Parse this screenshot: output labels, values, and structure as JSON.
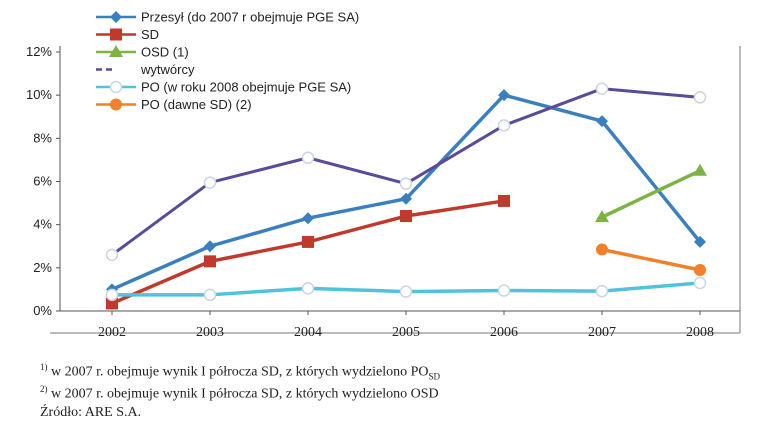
{
  "chart_data": {
    "type": "line",
    "title": "",
    "xlabel": "",
    "ylabel": "",
    "categories": [
      "2002",
      "2003",
      "2004",
      "2005",
      "2006",
      "2007",
      "2008"
    ],
    "ylim": [
      0,
      12
    ],
    "yticks": [
      "0%",
      "2%",
      "4%",
      "6%",
      "8%",
      "10%",
      "12%"
    ],
    "legend_position": "top-left",
    "series": [
      {
        "name": "Przesył (do 2007 r obejmuje PGE SA)",
        "color": "#3a7fc0",
        "marker": "diamond",
        "dashed": false,
        "values": [
          1.0,
          3.0,
          4.3,
          5.2,
          10.0,
          8.8,
          3.2
        ]
      },
      {
        "name": "SD",
        "color": "#c0392b",
        "marker": "square",
        "dashed": false,
        "values": [
          0.35,
          2.3,
          3.2,
          4.4,
          5.1,
          null,
          null
        ]
      },
      {
        "name": "OSD (1)",
        "color": "#7cb342",
        "marker": "triangle",
        "dashed": false,
        "values": [
          null,
          null,
          null,
          null,
          null,
          4.35,
          6.5
        ]
      },
      {
        "name": "wytwórcy",
        "color": "#5b4a9a",
        "marker": "circle-open",
        "dashed": true,
        "values": [
          2.6,
          5.95,
          7.1,
          5.9,
          8.6,
          10.3,
          9.9
        ]
      },
      {
        "name": "PO (w roku 2008 obejmuje PGE SA)",
        "color": "#4fc3dc",
        "marker": "circle-open",
        "dashed": false,
        "values": [
          0.75,
          0.75,
          1.05,
          0.9,
          0.95,
          0.92,
          1.3
        ]
      },
      {
        "name": "PO (dawne SD) (2)",
        "color": "#f0812a",
        "marker": "circle",
        "dashed": false,
        "values": [
          null,
          null,
          null,
          null,
          null,
          2.85,
          1.9
        ]
      }
    ]
  },
  "notes": {
    "note1_mark": "1)",
    "note1_text": " w 2007 r. obejmuje wynik I półrocza SD, z których wydzielono PO",
    "note1_sub": "SD",
    "note2_mark": "2)",
    "note2_text": " w 2007 r. obejmuje wynik I półrocza SD, z których wydzielono OSD",
    "source": "Źródło: ARE S.A."
  }
}
